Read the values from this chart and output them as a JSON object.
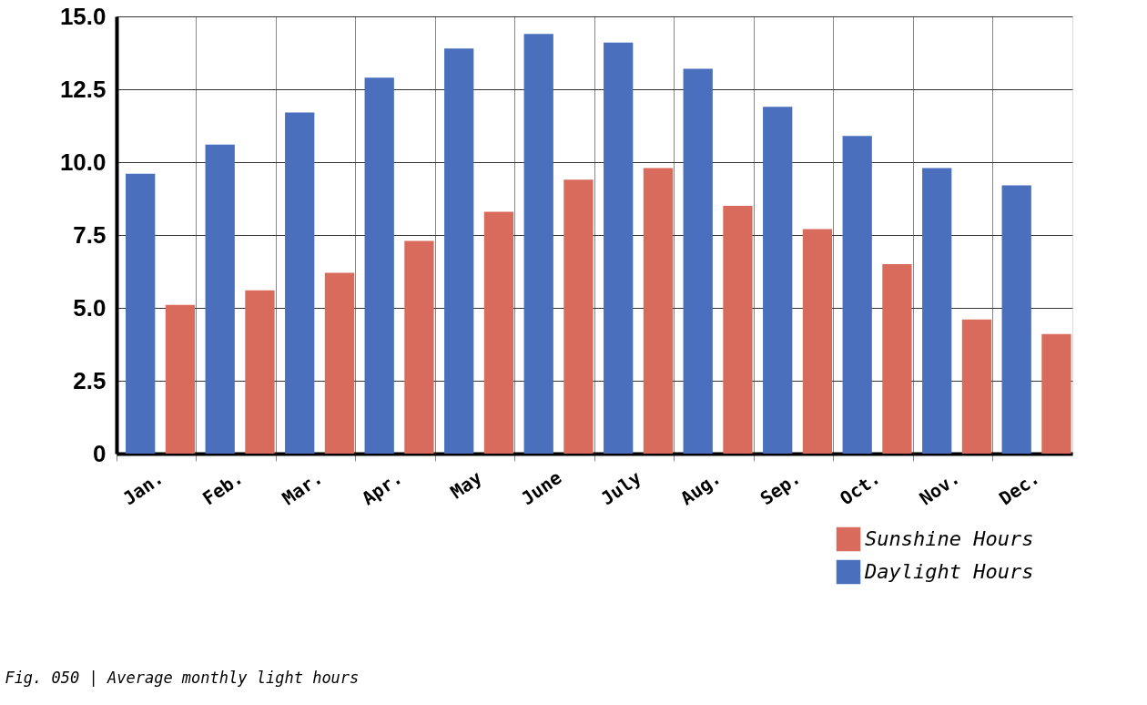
{
  "chart_data": {
    "type": "bar",
    "categories": [
      "Jan.",
      "Feb.",
      "Mar.",
      "Apr.",
      "May",
      "June",
      "July",
      "Aug.",
      "Sep.",
      "Oct.",
      "Nov.",
      "Dec."
    ],
    "series": [
      {
        "name": "Sunshine Hours",
        "color": "#d86b5b",
        "values": [
          5.1,
          5.6,
          6.2,
          7.3,
          8.3,
          9.4,
          9.8,
          8.5,
          7.7,
          6.5,
          4.6,
          4.1
        ]
      },
      {
        "name": "Daylight Hours",
        "color": "#4a6fbd",
        "values": [
          9.6,
          10.6,
          11.7,
          12.9,
          13.9,
          14.4,
          14.1,
          13.2,
          11.9,
          10.9,
          9.8,
          9.2
        ]
      }
    ],
    "ylim": [
      0,
      15
    ],
    "yticks": [
      0,
      2.5,
      {
        "value": 5,
        "label": "5.0"
      },
      7.5,
      {
        "value": 10,
        "label": "10.0"
      },
      12.5,
      {
        "value": 15,
        "label": "15.0"
      }
    ],
    "grid": true,
    "legend": "bottom right",
    "annotations": [
      "Fig. 050 | Average monthly light hours"
    ]
  }
}
